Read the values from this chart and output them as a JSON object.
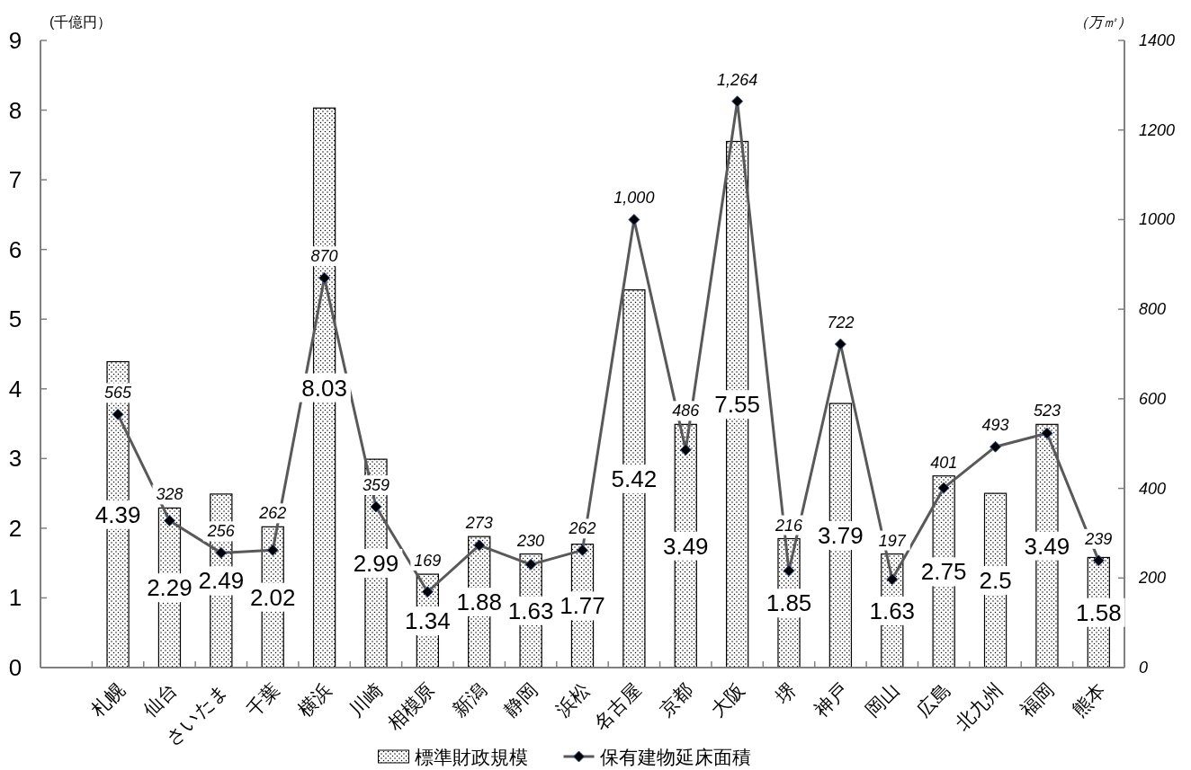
{
  "chart_data": {
    "type": "bar",
    "ylabel": "(千億円）",
    "y2label": "（万㎡）",
    "categories": [
      null,
      "札幌",
      "仙台",
      "さいたま",
      "千葉",
      "横浜",
      "川崎",
      "相模原",
      "新潟",
      "静岡",
      "浜松",
      "名古屋",
      "京都",
      "大阪",
      "堺",
      "神戸",
      "岡山",
      "広島",
      "北九州",
      "福岡",
      "熊本"
    ],
    "series": [
      {
        "name": "標準財政規模",
        "color": "#000000",
        "values": [
          null,
          4.39,
          2.29,
          2.49,
          2.02,
          8.03,
          2.99,
          1.34,
          1.88,
          1.63,
          1.77,
          5.42,
          3.49,
          7.55,
          1.85,
          3.79,
          1.63,
          2.75,
          2.5,
          3.49,
          1.58
        ],
        "value_labels": [
          null,
          "4.39",
          "2.29",
          "2.49",
          "2.02",
          "8.03",
          "2.99",
          "1.34",
          "1.88",
          "1.63",
          "1.77",
          "5.42",
          "3.49",
          "7.55",
          "1.85",
          "3.79",
          "1.63",
          "2.75",
          "2.5",
          "3.49",
          "1.58"
        ]
      },
      {
        "name": "保有建物延床面積",
        "type": "line",
        "axis": "y2",
        "color": "#595959",
        "values": [
          null,
          565,
          328,
          256,
          262,
          870,
          359,
          169,
          273,
          230,
          262,
          1000,
          486,
          1264,
          216,
          722,
          197,
          401,
          493,
          523,
          239
        ],
        "value_labels": [
          null,
          "565",
          "328",
          "256",
          "262",
          "870",
          "359",
          "169",
          "273",
          "230",
          "262",
          "1,000",
          "486",
          "1,264",
          "216",
          "722",
          "197",
          "401",
          "493",
          "523",
          "239"
        ]
      }
    ],
    "ylim": [
      0,
      9
    ],
    "yticks": [
      0,
      1,
      2,
      3,
      4,
      5,
      6,
      7,
      8,
      9
    ],
    "y2lim": [
      0,
      1400
    ],
    "y2ticks": [
      0,
      200,
      400,
      600,
      800,
      1000,
      1200,
      1400
    ],
    "marker": "diamond",
    "legend": "bottom"
  }
}
